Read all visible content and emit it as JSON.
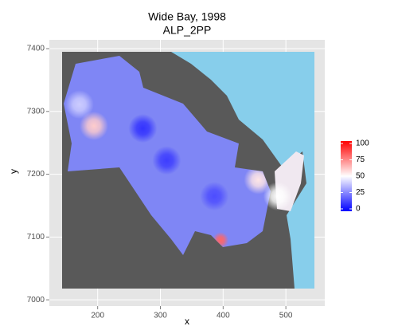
{
  "chart_data": {
    "type": "raster",
    "title": "Wide Bay, 1998",
    "subtitle": "ALP_2PP",
    "x_label": "x",
    "y_label": "y",
    "xlim": [
      123,
      562
    ],
    "ylim": [
      6990,
      7414
    ],
    "xticks": [
      200,
      300,
      400,
      500
    ],
    "yticks": [
      7000,
      7100,
      7200,
      7300,
      7400
    ],
    "grid": true,
    "hotspots": {
      "x": [
        194,
        456,
        487,
        396,
        272,
        310,
        386,
        171
      ],
      "y": [
        7277,
        7191,
        7165,
        7095,
        7273,
        7222,
        7165,
        7311
      ],
      "values": [
        60,
        55,
        50,
        80,
        10,
        12,
        15,
        40
      ]
    },
    "colorbar": {
      "limits": [
        0,
        100
      ],
      "ticks": [
        0,
        25,
        50,
        75,
        100
      ],
      "midpoint": 50,
      "low": "#0000ff",
      "mid": "#ffffff",
      "high": "#ff0000"
    }
  }
}
